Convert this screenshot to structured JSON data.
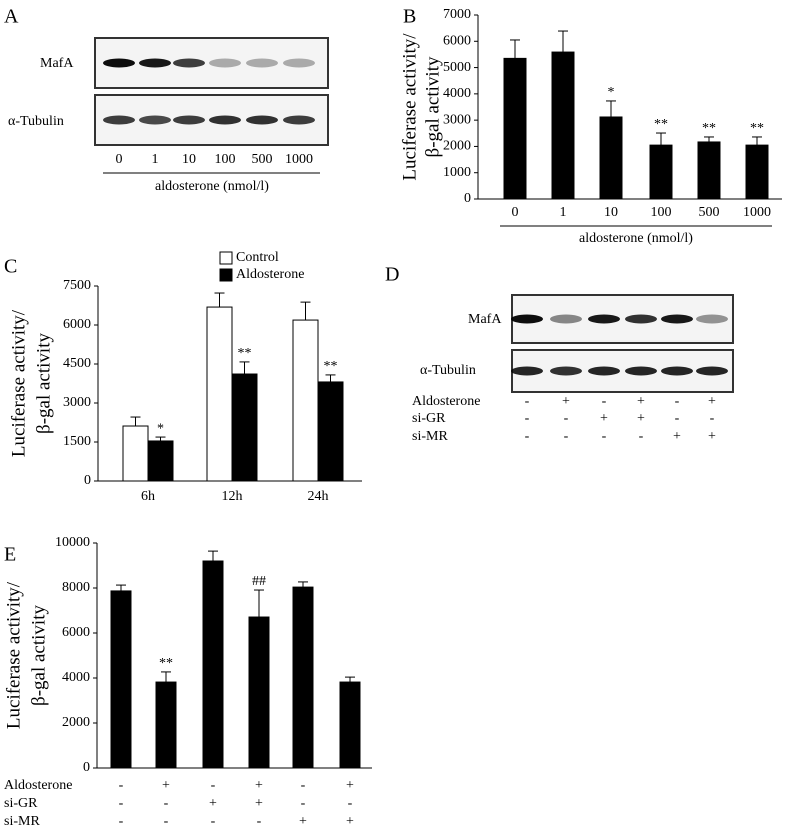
{
  "panel_a": {
    "letter": "A",
    "blots": [
      "MafA",
      "α-Tubulin"
    ],
    "lanes": [
      "0",
      "1",
      "10",
      "100",
      "500",
      "1000"
    ],
    "xlabel": "aldosterone (nmol/l)"
  },
  "panel_d": {
    "letter": "D",
    "blots": [
      "MafA",
      "α-Tubulin"
    ],
    "treatments": [
      {
        "name": "Aldosterone",
        "signs": [
          "-",
          "+",
          "-",
          "+",
          "-",
          "+"
        ]
      },
      {
        "name": "si-GR",
        "signs": [
          "-",
          "-",
          "+",
          "+",
          "-",
          "-"
        ]
      },
      {
        "name": "si-MR",
        "signs": [
          "-",
          "-",
          "-",
          "-",
          "+",
          "+"
        ]
      }
    ]
  },
  "chart_data": [
    {
      "type": "bar",
      "panel": "B",
      "ylabel": [
        "Luciferase activity/",
        "β-gal activity"
      ],
      "xlabel": "aldosterone (nmol/l)",
      "categories": [
        "0",
        "1",
        "10",
        "100",
        "500",
        "1000"
      ],
      "color": "#000000",
      "values": [
        5350,
        5590,
        3120,
        2050,
        2170,
        2050
      ],
      "errors": [
        700,
        800,
        610,
        460,
        190,
        310
      ],
      "annotations": [
        null,
        null,
        "*",
        "**",
        "**",
        "**"
      ],
      "ylim": [
        0,
        7000
      ],
      "yticks": [
        0,
        1000,
        2000,
        3000,
        4000,
        5000,
        6000,
        7000
      ]
    },
    {
      "type": "bar",
      "panel": "C",
      "ylabel": [
        "Luciferase activity/",
        "β-gal activity"
      ],
      "categories": [
        "6h",
        "12h",
        "24h"
      ],
      "series": [
        {
          "name": "Control",
          "color": "#ffffff",
          "values": [
            2115,
            6690,
            6190
          ],
          "errors": [
            345,
            540,
            690
          ],
          "annotations": [
            null,
            null,
            null
          ]
        },
        {
          "name": "Aldosterone",
          "color": "#000000",
          "values": [
            1540,
            4115,
            3810
          ],
          "errors": [
            150,
            465,
            270
          ],
          "annotations": [
            "*",
            "**",
            "**"
          ]
        }
      ],
      "ylim": [
        0,
        7500
      ],
      "yticks": [
        0,
        1500,
        3000,
        4500,
        6000,
        7500
      ]
    },
    {
      "type": "bar",
      "panel": "E",
      "ylabel": [
        "Luciferase activity/",
        "β-gal activity"
      ],
      "color": "#000000",
      "values": [
        7870,
        3820,
        9200,
        6710,
        8040,
        3820
      ],
      "errors": [
        260,
        450,
        440,
        1200,
        230,
        220
      ],
      "annotations": [
        null,
        "**",
        null,
        "##",
        null,
        null
      ],
      "treatments": [
        {
          "name": "Aldosterone",
          "signs": [
            "-",
            "+",
            "-",
            "+",
            "-",
            "+"
          ]
        },
        {
          "name": "si-GR",
          "signs": [
            "-",
            "-",
            "+",
            "+",
            "-",
            "-"
          ]
        },
        {
          "name": "si-MR",
          "signs": [
            "-",
            "-",
            "-",
            "-",
            "+",
            "+"
          ]
        }
      ],
      "ylim": [
        0,
        10000
      ],
      "yticks": [
        0,
        2000,
        4000,
        6000,
        8000,
        10000
      ]
    }
  ]
}
